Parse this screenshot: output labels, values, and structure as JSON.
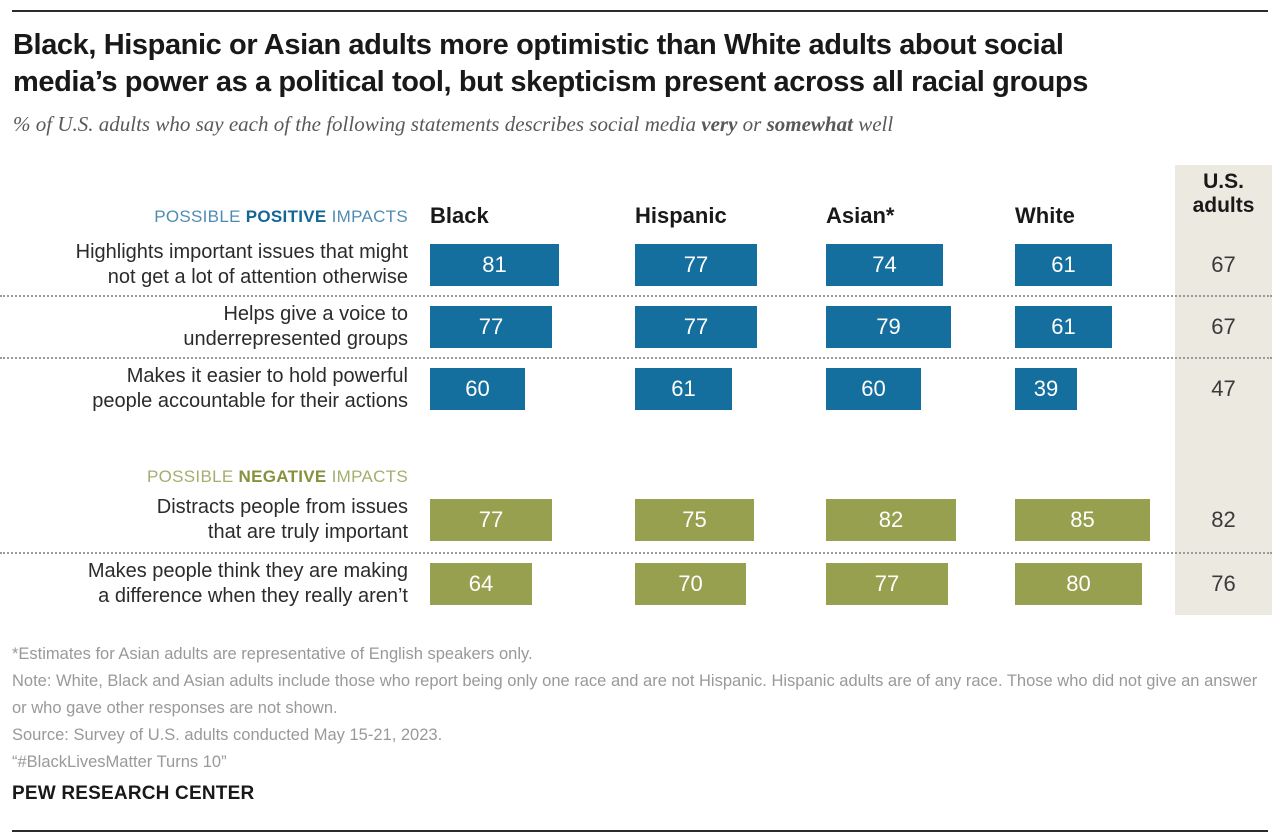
{
  "page": {
    "title_line1": "Black, Hispanic or Asian adults more optimistic than White adults about social",
    "title_line2": "media’s power as a political tool, but skepticism present across all racial groups",
    "subtitle": {
      "prefix": "% of U.S. adults who say each of the following statements describes social media ",
      "bold1": "very",
      "mid": " or ",
      "bold2": "somewhat",
      "suffix": " well"
    }
  },
  "chart_data": {
    "type": "bar",
    "unit": "% describes very or somewhat well",
    "groups": [
      "Black",
      "Hispanic",
      "Asian*",
      "White"
    ],
    "national_column_header": "U.S.\nadults",
    "value_range": [
      0,
      100
    ],
    "colors": {
      "positive_bar": "#146e9e",
      "negative_bar": "#97a04f",
      "national_band": "#ece9e1"
    },
    "sections": [
      {
        "id": "positive",
        "header": {
          "pre": "POSSIBLE ",
          "emph": "POSITIVE",
          "post": " IMPACTS"
        }
      },
      {
        "id": "negative",
        "header": {
          "pre": "POSSIBLE ",
          "emph": "NEGATIVE",
          "post": " IMPACTS"
        }
      }
    ],
    "rows": [
      {
        "section": "positive",
        "label_lines": [
          "Highlights important issues that might",
          "not get a lot of attention otherwise"
        ],
        "values": [
          81,
          77,
          74,
          61
        ],
        "us_adults": 67
      },
      {
        "section": "positive",
        "label_lines": [
          "Helps give a voice to",
          "underrepresented groups"
        ],
        "values": [
          77,
          77,
          79,
          61
        ],
        "us_adults": 67
      },
      {
        "section": "positive",
        "label_lines": [
          "Makes it easier to hold powerful",
          "people accountable for their actions"
        ],
        "values": [
          60,
          61,
          60,
          39
        ],
        "us_adults": 47
      },
      {
        "section": "negative",
        "label_lines": [
          "Distracts people from issues",
          "that are truly important"
        ],
        "values": [
          77,
          75,
          82,
          85
        ],
        "us_adults": 82
      },
      {
        "section": "negative",
        "label_lines": [
          "Makes people think they are making",
          "a difference when they really aren’t"
        ],
        "values": [
          64,
          70,
          77,
          80
        ],
        "us_adults": 76
      }
    ]
  },
  "footnotes": [
    "*Estimates for Asian adults are representative of English speakers only.",
    "Note: White, Black and Asian adults include those who report being only one race and are not Hispanic. Hispanic adults are of any race. Those who did not give an answer or who gave other responses are not shown.",
    "Source: Survey of U.S. adults conducted May 15-21, 2023.",
    "“#BlackLivesMatter Turns 10”"
  ],
  "branding": {
    "wordmark": "PEW RESEARCH CENTER"
  }
}
